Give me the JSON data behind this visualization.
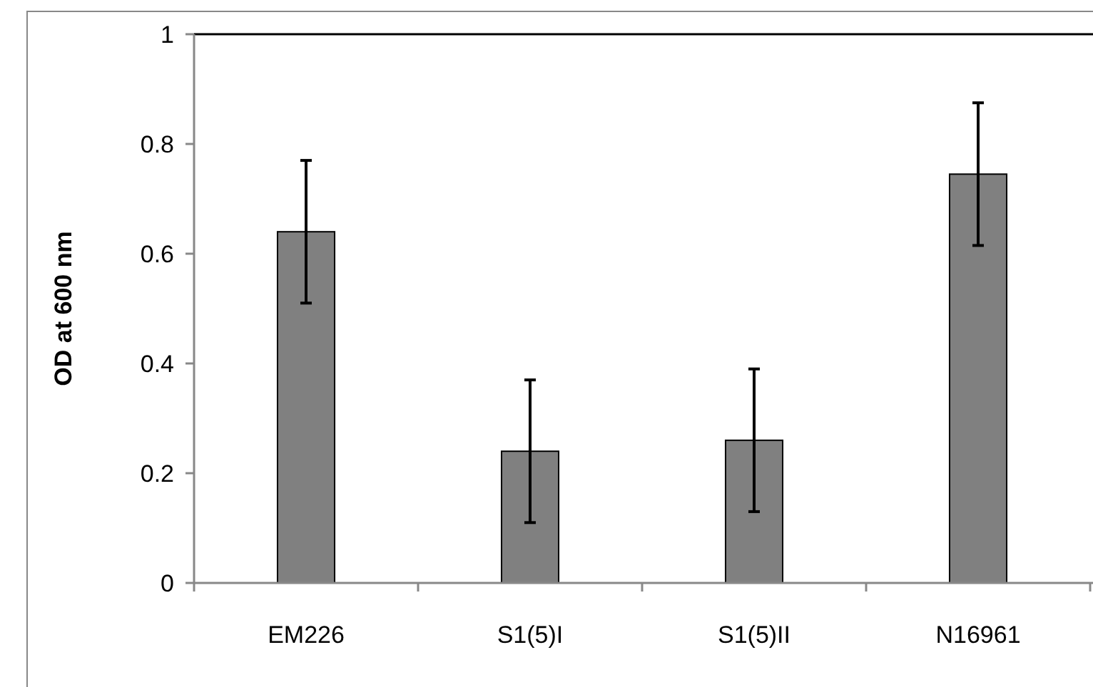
{
  "chart_data": {
    "type": "bar",
    "ylabel": "OD at 600 nm",
    "categories": [
      "EM226",
      "S1(5)I",
      "S1(5)II",
      "N16961"
    ],
    "values": [
      0.64,
      0.24,
      0.26,
      0.745
    ],
    "color": "#808080",
    "errors": [
      0.13,
      0.13,
      0.13,
      0.13
    ],
    "ylim": [
      0,
      1
    ],
    "yticks": [
      0,
      0.2,
      0.4,
      0.6,
      0.8,
      1
    ]
  }
}
